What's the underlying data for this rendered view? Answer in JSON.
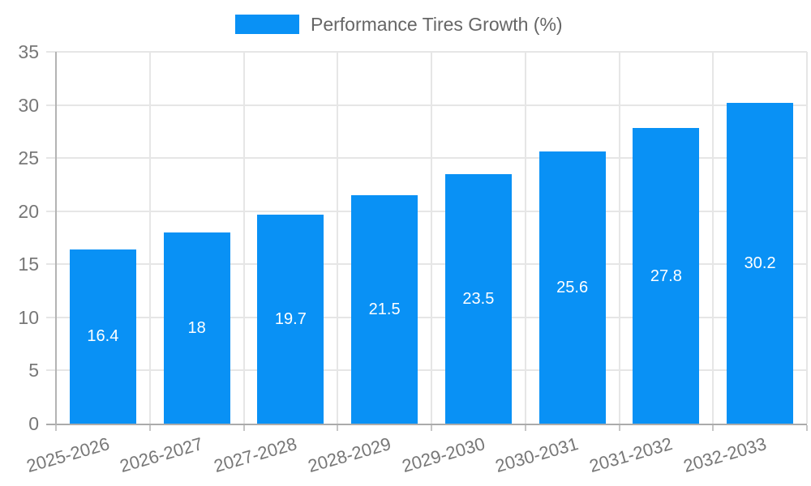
{
  "chart_data": {
    "type": "bar",
    "title": "",
    "xlabel": "",
    "ylabel": "",
    "categories": [
      "2025-2026",
      "2026-2027",
      "2027-2028",
      "2028-2029",
      "2029-2030",
      "2030-2031",
      "2031-2032",
      "2032-2033"
    ],
    "series": [
      {
        "name": "Performance Tires Growth (%)",
        "values": [
          16.4,
          18,
          19.7,
          21.5,
          23.5,
          25.6,
          27.8,
          30.2
        ]
      }
    ],
    "value_labels": [
      "16.4",
      "18",
      "19.7",
      "21.5",
      "23.5",
      "25.6",
      "27.8",
      "30.2"
    ],
    "ylim": [
      0,
      35
    ],
    "y_ticks": [
      0,
      5,
      10,
      15,
      20,
      25,
      30,
      35
    ],
    "grid": true,
    "legend_position": "top",
    "bar_color": "#0991F5",
    "value_label_color": "#FFFFFF",
    "axis_text_color": "#777777",
    "gridline_color": "#E6E6E6",
    "axis_line_color": "#ABABAB"
  }
}
